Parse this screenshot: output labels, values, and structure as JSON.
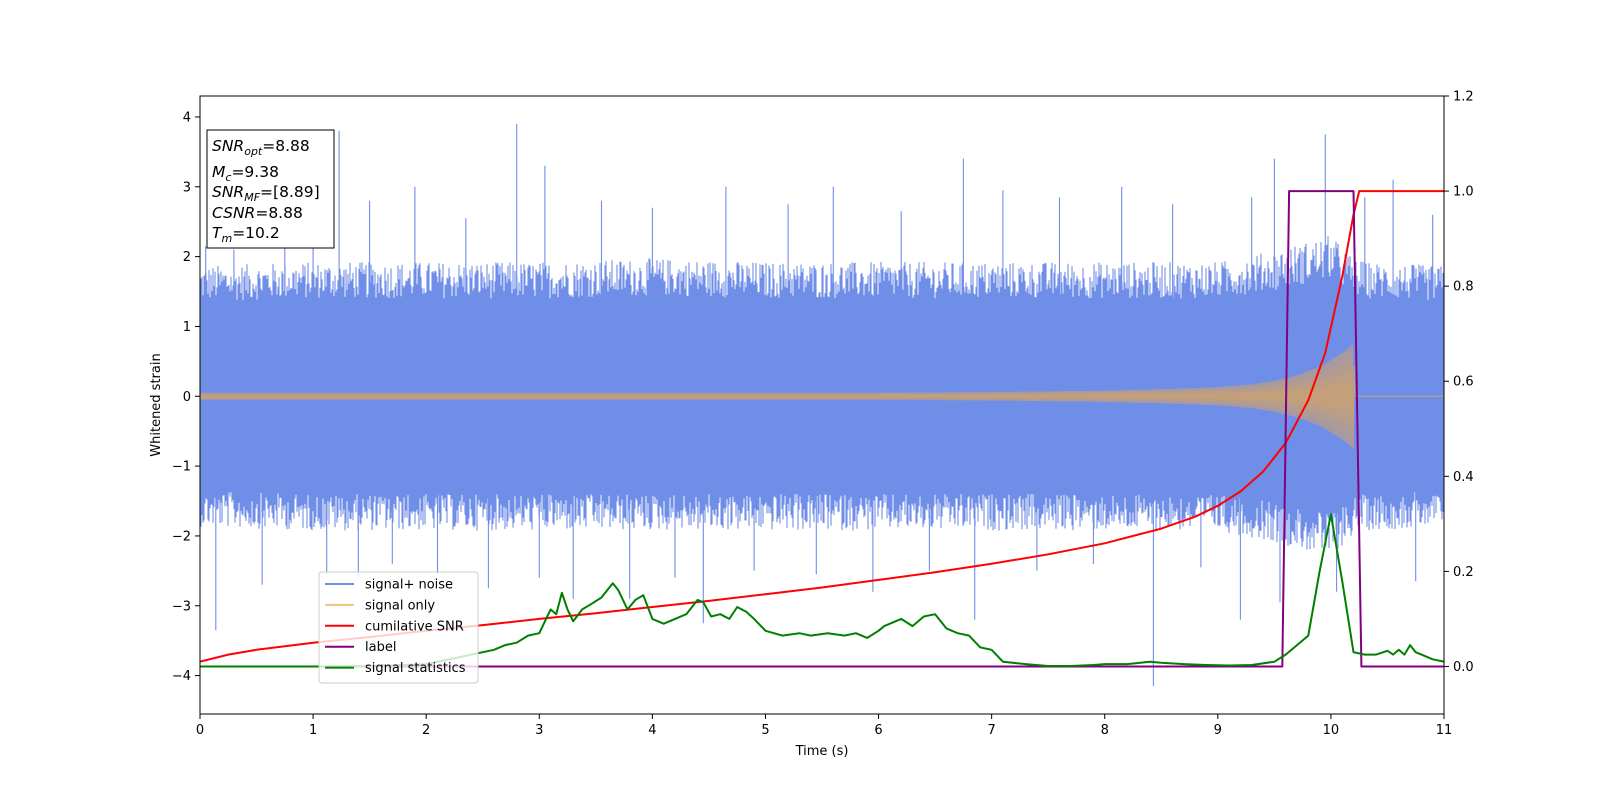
{
  "chart_data": {
    "type": "line",
    "xlabel": "Time (s)",
    "ylabel": "Whitened strain",
    "xlim": [
      0,
      11
    ],
    "ylim": [
      -4.55,
      4.3
    ],
    "y2lim": [
      -0.1,
      1.2
    ],
    "x_ticks": [
      0,
      1,
      2,
      3,
      4,
      5,
      6,
      7,
      8,
      9,
      10,
      11
    ],
    "x_tick_labels": [
      "0",
      "1",
      "2",
      "3",
      "4",
      "5",
      "6",
      "7",
      "8",
      "9",
      "10",
      "11"
    ],
    "y_ticks": [
      -4,
      -3,
      -2,
      -1,
      0,
      1,
      2,
      3,
      4
    ],
    "y_tick_labels": [
      "−4",
      "−3",
      "−2",
      "−1",
      "0",
      "1",
      "2",
      "3",
      "4"
    ],
    "y2_ticks": [
      0.0,
      0.2,
      0.4,
      0.6,
      0.8,
      1.0,
      1.2
    ],
    "y2_tick_labels": [
      "0.0",
      "0.2",
      "0.4",
      "0.6",
      "0.8",
      "1.0",
      "1.2"
    ],
    "grid": false,
    "legend_position": "lower-left",
    "info_box": {
      "snr_opt_label": "SNR",
      "snr_opt_sub": "opt",
      "snr_opt_value": "=8.88",
      "mc_label": "M",
      "mc_sub": "c",
      "mc_value": "=9.38",
      "snr_mf_label": "SNR",
      "snr_mf_sub": "MF",
      "snr_mf_value": "=[8.89]",
      "csnr_label": "CSNR",
      "csnr_value": "=8.88",
      "tm_label": "T",
      "tm_sub": "m",
      "tm_value": "=10.2"
    },
    "series": [
      {
        "name": "signal+ noise",
        "axis": "left",
        "color": "#6f8ee8",
        "style": "band",
        "envelope": {
          "x": [
            0,
            1,
            2,
            3,
            4,
            5,
            6,
            7,
            8,
            9,
            9.5,
            10,
            10.2,
            10.3,
            11
          ],
          "upper": [
            1.7,
            1.75,
            1.75,
            1.75,
            1.8,
            1.75,
            1.75,
            1.75,
            1.75,
            1.75,
            1.9,
            2.1,
            1.8,
            1.75,
            1.7
          ],
          "lower": [
            -1.7,
            -1.75,
            -1.75,
            -1.75,
            -1.75,
            -1.75,
            -1.75,
            -1.75,
            -1.75,
            -1.75,
            -1.9,
            -2.1,
            -1.8,
            -1.75,
            -1.7
          ]
        },
        "peaks": [
          {
            "x": 0.05,
            "y": 2.15
          },
          {
            "x": 0.14,
            "y": -3.35
          },
          {
            "x": 0.3,
            "y": 2.1
          },
          {
            "x": 0.55,
            "y": -2.7
          },
          {
            "x": 0.75,
            "y": 2.35
          },
          {
            "x": 1.0,
            "y": 2.25
          },
          {
            "x": 1.12,
            "y": -2.55
          },
          {
            "x": 1.23,
            "y": 3.8
          },
          {
            "x": 1.4,
            "y": -2.6
          },
          {
            "x": 1.5,
            "y": 2.8
          },
          {
            "x": 1.7,
            "y": -2.4
          },
          {
            "x": 1.9,
            "y": 3.0
          },
          {
            "x": 2.1,
            "y": -2.55
          },
          {
            "x": 2.35,
            "y": 2.55
          },
          {
            "x": 2.55,
            "y": -2.75
          },
          {
            "x": 2.8,
            "y": 3.9
          },
          {
            "x": 3.0,
            "y": -2.6
          },
          {
            "x": 3.05,
            "y": 3.3
          },
          {
            "x": 3.3,
            "y": -2.9
          },
          {
            "x": 3.55,
            "y": 2.8
          },
          {
            "x": 3.8,
            "y": -2.9
          },
          {
            "x": 4.0,
            "y": 2.7
          },
          {
            "x": 4.2,
            "y": -2.6
          },
          {
            "x": 4.45,
            "y": -3.25
          },
          {
            "x": 4.65,
            "y": 3.0
          },
          {
            "x": 4.9,
            "y": -2.5
          },
          {
            "x": 5.2,
            "y": 2.75
          },
          {
            "x": 5.45,
            "y": -2.55
          },
          {
            "x": 5.6,
            "y": 3.0
          },
          {
            "x": 5.95,
            "y": -2.8
          },
          {
            "x": 6.2,
            "y": 2.65
          },
          {
            "x": 6.45,
            "y": -2.5
          },
          {
            "x": 6.75,
            "y": 3.4
          },
          {
            "x": 6.85,
            "y": -3.2
          },
          {
            "x": 7.1,
            "y": 2.95
          },
          {
            "x": 7.4,
            "y": -2.5
          },
          {
            "x": 7.6,
            "y": 2.85
          },
          {
            "x": 7.9,
            "y": -2.4
          },
          {
            "x": 8.15,
            "y": 3.0
          },
          {
            "x": 8.43,
            "y": -4.15
          },
          {
            "x": 8.6,
            "y": 2.75
          },
          {
            "x": 8.85,
            "y": -2.45
          },
          {
            "x": 9.2,
            "y": -3.2
          },
          {
            "x": 9.3,
            "y": 2.85
          },
          {
            "x": 9.5,
            "y": 3.4
          },
          {
            "x": 9.55,
            "y": -2.95
          },
          {
            "x": 9.95,
            "y": 3.75
          },
          {
            "x": 10.05,
            "y": -2.8
          },
          {
            "x": 10.3,
            "y": 2.85
          },
          {
            "x": 10.55,
            "y": 3.1
          },
          {
            "x": 10.75,
            "y": -2.65
          },
          {
            "x": 10.9,
            "y": 2.6
          }
        ]
      },
      {
        "name": "signal only",
        "axis": "left",
        "color": "#f5c27a",
        "style": "chirp",
        "chirp": {
          "x": [
            0,
            2,
            4,
            6,
            7,
            8,
            8.5,
            9,
            9.3,
            9.5,
            9.7,
            9.9,
            10.1,
            10.2,
            10.21
          ],
          "amplitude": [
            0.05,
            0.05,
            0.05,
            0.05,
            0.06,
            0.08,
            0.1,
            0.13,
            0.17,
            0.22,
            0.3,
            0.42,
            0.62,
            0.75,
            0
          ]
        }
      },
      {
        "name": "cumilative SNR",
        "axis": "right",
        "color": "#ff0000",
        "x": [
          0,
          0.25,
          0.5,
          1,
          1.5,
          2,
          2.5,
          3,
          3.5,
          4,
          4.5,
          5,
          5.5,
          6,
          6.5,
          7,
          7.5,
          8,
          8.5,
          8.8,
          9,
          9.2,
          9.4,
          9.6,
          9.8,
          9.95,
          10.1,
          10.2,
          10.25,
          11
        ],
        "values": [
          0.01,
          0.025,
          0.035,
          0.05,
          0.062,
          0.075,
          0.087,
          0.1,
          0.112,
          0.125,
          0.138,
          0.152,
          0.166,
          0.182,
          0.198,
          0.216,
          0.236,
          0.259,
          0.29,
          0.315,
          0.338,
          0.368,
          0.41,
          0.47,
          0.56,
          0.66,
          0.82,
          0.95,
          1.0,
          1.0
        ]
      },
      {
        "name": "label",
        "axis": "right",
        "color": "#800080",
        "x": [
          0,
          9.57,
          9.63,
          10.2,
          10.27,
          11
        ],
        "values": [
          0.0,
          0.0,
          1.0,
          1.0,
          0.0,
          0.0
        ]
      },
      {
        "name": "signal statistics",
        "axis": "right",
        "color": "#008000",
        "x": [
          0,
          1,
          1.5,
          2.0,
          2.3,
          2.5,
          2.6,
          2.7,
          2.8,
          2.9,
          3.0,
          3.1,
          3.15,
          3.2,
          3.25,
          3.3,
          3.38,
          3.45,
          3.55,
          3.6,
          3.65,
          3.7,
          3.78,
          3.85,
          3.92,
          4.0,
          4.1,
          4.2,
          4.3,
          4.4,
          4.45,
          4.52,
          4.6,
          4.68,
          4.75,
          4.83,
          4.9,
          5.0,
          5.15,
          5.3,
          5.4,
          5.55,
          5.7,
          5.8,
          5.9,
          6.0,
          6.05,
          6.1,
          6.2,
          6.3,
          6.4,
          6.5,
          6.6,
          6.7,
          6.8,
          6.9,
          7.0,
          7.1,
          7.3,
          7.5,
          7.7,
          7.9,
          8.0,
          8.2,
          8.4,
          8.5,
          8.7,
          8.9,
          9.1,
          9.3,
          9.5,
          9.6,
          9.7,
          9.8,
          9.9,
          10.0,
          10.1,
          10.2,
          10.3,
          10.4,
          10.5,
          10.55,
          10.6,
          10.65,
          10.7,
          10.75,
          10.8,
          10.9,
          11
        ],
        "values": [
          0.0,
          0.0,
          0.001,
          0.005,
          0.02,
          0.03,
          0.035,
          0.045,
          0.05,
          0.065,
          0.07,
          0.12,
          0.11,
          0.155,
          0.12,
          0.095,
          0.12,
          0.13,
          0.145,
          0.16,
          0.175,
          0.16,
          0.12,
          0.14,
          0.15,
          0.1,
          0.09,
          0.1,
          0.11,
          0.14,
          0.135,
          0.105,
          0.11,
          0.1,
          0.125,
          0.115,
          0.1,
          0.075,
          0.065,
          0.07,
          0.065,
          0.07,
          0.065,
          0.07,
          0.06,
          0.075,
          0.085,
          0.09,
          0.1,
          0.085,
          0.105,
          0.11,
          0.08,
          0.07,
          0.065,
          0.04,
          0.035,
          0.01,
          0.005,
          0.001,
          0.001,
          0.003,
          0.005,
          0.005,
          0.01,
          0.008,
          0.005,
          0.003,
          0.002,
          0.003,
          0.01,
          0.025,
          0.045,
          0.065,
          0.2,
          0.32,
          0.18,
          0.03,
          0.025,
          0.025,
          0.033,
          0.025,
          0.035,
          0.025,
          0.045,
          0.03,
          0.025,
          0.015,
          0.01
        ]
      }
    ]
  }
}
